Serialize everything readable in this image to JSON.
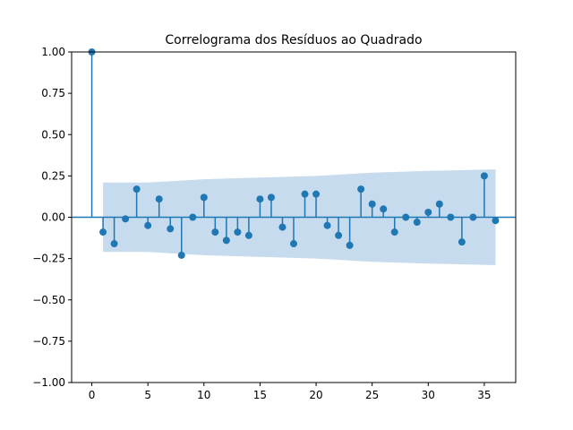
{
  "chart_data": {
    "type": "stem",
    "title": "Correlograma dos Resíduos ao Quadrado",
    "xlabel": "",
    "ylabel": "",
    "xlim": [
      -1.8,
      37.8
    ],
    "ylim": [
      -1.0,
      1.0
    ],
    "x_ticks": [
      0,
      5,
      10,
      15,
      20,
      25,
      30,
      35
    ],
    "y_ticks": [
      -1.0,
      -0.75,
      -0.5,
      -0.25,
      0.0,
      0.25,
      0.5,
      0.75,
      1.0
    ],
    "x_tick_labels": [
      "0",
      "5",
      "10",
      "15",
      "20",
      "25",
      "30",
      "35"
    ],
    "y_tick_labels": [
      "−1.00",
      "−0.75",
      "−0.50",
      "−0.25",
      "0.00",
      "0.25",
      "0.50",
      "0.75",
      "1.00"
    ],
    "grid": false,
    "colors": {
      "series": "#1f77b4",
      "band": "#c6dbed"
    },
    "series": [
      {
        "lags": [
          0,
          1,
          2,
          3,
          4,
          5,
          6,
          7,
          8,
          9,
          10,
          11,
          12,
          13,
          14,
          15,
          16,
          17,
          18,
          19,
          20,
          21,
          22,
          23,
          24,
          25,
          26,
          27,
          28,
          29,
          30,
          31,
          32,
          33,
          34,
          35,
          36
        ],
        "values": [
          1.0,
          -0.09,
          -0.16,
          -0.01,
          0.17,
          -0.05,
          0.11,
          -0.07,
          -0.23,
          0.0,
          0.12,
          -0.09,
          -0.14,
          -0.09,
          -0.11,
          0.11,
          0.12,
          -0.06,
          -0.16,
          0.14,
          0.14,
          -0.05,
          -0.11,
          -0.17,
          0.17,
          0.08,
          0.05,
          -0.09,
          0.0,
          -0.03,
          0.03,
          0.08,
          0.0,
          -0.15,
          0.0,
          0.25,
          -0.02
        ]
      }
    ],
    "confidence_band": {
      "lags": [
        1,
        5,
        10,
        15,
        20,
        25,
        30,
        36
      ],
      "upper": [
        0.21,
        0.21,
        0.23,
        0.24,
        0.25,
        0.27,
        0.28,
        0.29
      ]
    }
  }
}
